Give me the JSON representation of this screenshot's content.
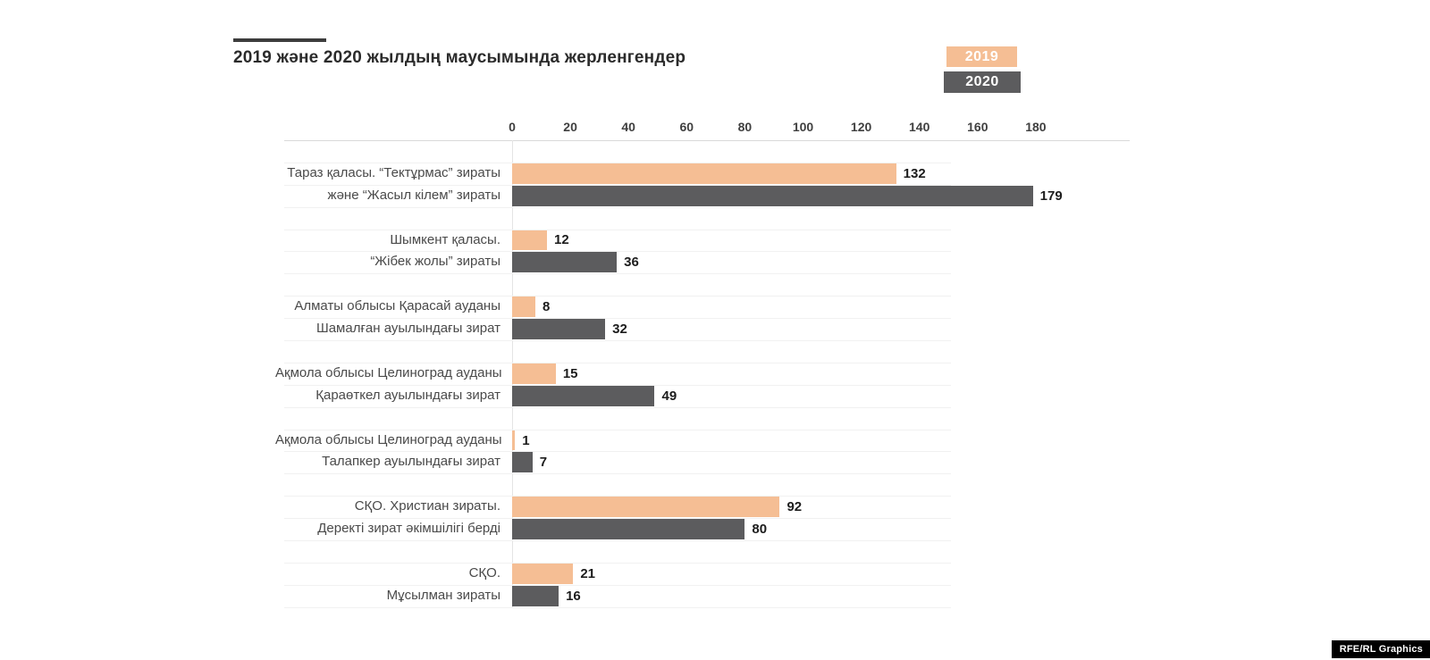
{
  "footer": {
    "credit": "RFE/RL Graphics"
  },
  "colors": {
    "series_2019": "#F5BE94",
    "series_2020": "#5C5C5E",
    "title_text": "#2b2b2b",
    "axis_line": "#d9d9d9",
    "row_hairline": "#f1f1f1",
    "value_text": "#1c1c1c",
    "category_text": "#4a4a4a",
    "credit_bg": "#000000"
  },
  "chart_data": {
    "type": "bar",
    "orientation": "horizontal",
    "title": "2019 және 2020 жылдың маусымында жерленгендер",
    "xlabel": "",
    "ylabel": "",
    "xlim": [
      0,
      180
    ],
    "x_ticks": [
      0,
      20,
      40,
      60,
      80,
      100,
      120,
      140,
      160,
      180
    ],
    "grid": "row-hairlines",
    "legend_position": "top-right",
    "categories": [
      [
        "Тараз қаласы. “Тектұрмас” зираты",
        "және “Жасыл кілем” зираты"
      ],
      [
        "Шымкент қаласы.",
        "“Жібек жолы” зираты"
      ],
      [
        "Алматы облысы Қарасай ауданы",
        "Шамалған ауылындағы зират"
      ],
      [
        "Ақмола облысы Целиноград ауданы",
        "Қараөткел ауылындағы зират"
      ],
      [
        "Ақмола облысы Целиноград ауданы",
        "Талапкер ауылындағы зират"
      ],
      [
        "СҚО. Христиан зираты.",
        "Деректі зират әкімшілігі берді"
      ],
      [
        "СҚО.",
        "Мұсылман зираты"
      ]
    ],
    "series": [
      {
        "name": "2019",
        "color": "#F5BE94",
        "values": [
          132,
          12,
          8,
          15,
          1,
          92,
          21
        ]
      },
      {
        "name": "2020",
        "color": "#5C5C5E",
        "values": [
          179,
          36,
          32,
          49,
          7,
          80,
          16
        ]
      }
    ]
  }
}
